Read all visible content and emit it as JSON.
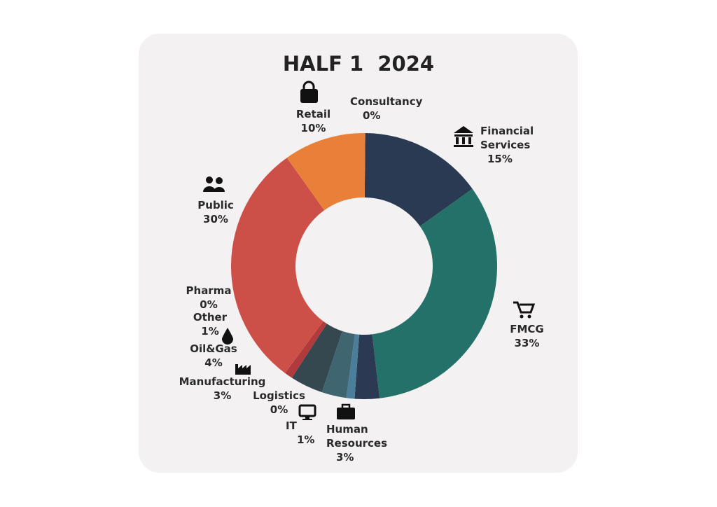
{
  "chart_data": {
    "type": "donut",
    "title": "HALF 1  2024",
    "categories": [
      "Consultancy",
      "Financial Services",
      "FMCG",
      "Human Resources",
      "IT",
      "Logistics",
      "Manufacturing",
      "Oil&Gas",
      "Other",
      "Pharma",
      "Public",
      "Retail"
    ],
    "values": [
      0,
      15,
      33,
      3,
      1,
      0,
      3,
      4,
      1,
      0,
      30,
      10
    ],
    "value_labels": [
      "0%",
      "15%",
      "33%",
      "3%",
      "1%",
      "0%",
      "3%",
      "4%",
      "1%",
      "0%",
      "30%",
      "10%"
    ],
    "colors": [
      "#2a7a5f",
      "#2a3a52",
      "#247169",
      "#2b3a52",
      "#4b7e9a",
      "#e9a03a",
      "#3f6670",
      "#35474f",
      "#b13a3c",
      "#e9a03a",
      "#cc4f48",
      "#e8803a"
    ]
  }
}
